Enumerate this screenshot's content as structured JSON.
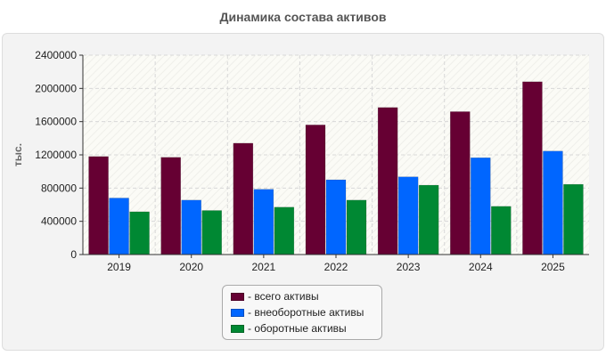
{
  "chart_data": {
    "type": "bar",
    "title": "Динамика состава активов",
    "xlabel": "",
    "ylabel": "тыс.",
    "ylim": [
      0,
      2400000
    ],
    "yticks": [
      "0",
      "400000",
      "800000",
      "1200000",
      "1600000",
      "2000000",
      "2400000"
    ],
    "categories": [
      "2019",
      "2020",
      "2021",
      "2022",
      "2023",
      "2024",
      "2025"
    ],
    "grid": true,
    "legend_position": "bottom-center",
    "series": [
      {
        "name": "- всего активы",
        "color": "#660033",
        "values": [
          1180000,
          1170000,
          1340000,
          1560000,
          1770000,
          1720000,
          2080000
        ]
      },
      {
        "name": "- внеоборотные активы",
        "color": "#0066ff",
        "values": [
          680000,
          655000,
          785000,
          900000,
          935000,
          1165000,
          1245000
        ]
      },
      {
        "name": "- оборотные активы",
        "color": "#008833",
        "values": [
          515000,
          530000,
          570000,
          655000,
          835000,
          580000,
          845000
        ]
      }
    ]
  }
}
